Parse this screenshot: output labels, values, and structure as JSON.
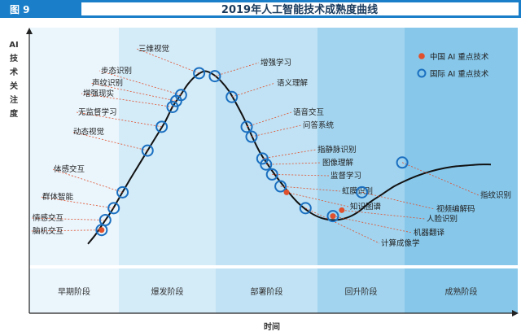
{
  "header": {
    "badge": "图 9",
    "title": "2019年人工智能技术成熟度曲线"
  },
  "axes": {
    "ylabel_chars": [
      "AI",
      "技",
      "术",
      "关",
      "注",
      "度"
    ],
    "xlabel": "时间"
  },
  "legend": [
    {
      "label": "中国 AI 重点技术",
      "marker": "dot",
      "color": "#e0502c"
    },
    {
      "label": "国际 AI 重点技术",
      "marker": "ring",
      "color": "#1a6fc0"
    }
  ],
  "colors": {
    "curve": "#111111",
    "cn": "#e0502c",
    "intl": "#1a6fc0",
    "stage_bg": [
      "#eaf5fc",
      "#d4ebf8",
      "#c0e2f4",
      "#a2d4ef",
      "#86c7ea"
    ]
  },
  "chart_data": {
    "type": "line",
    "title": "2019年人工智能技术成熟度曲线",
    "xlabel": "时间",
    "ylabel": "AI技术关注度",
    "stages": [
      "早期阶段",
      "爆发阶段",
      "部署阶段",
      "回升阶段",
      "成熟阶段"
    ],
    "curve": {
      "x": [
        0,
        2,
        4,
        6,
        8,
        10,
        13,
        16,
        19,
        21,
        23,
        25,
        27,
        29,
        31,
        33,
        35,
        37,
        39,
        41,
        43,
        46,
        49,
        52,
        55,
        58,
        61,
        64,
        67,
        70,
        73,
        76,
        79,
        82,
        85,
        88,
        91,
        94,
        97,
        100
      ],
      "y": [
        5,
        10,
        16,
        22,
        29,
        36,
        46,
        56,
        66,
        74,
        80,
        86,
        90,
        92,
        90.5,
        87,
        82,
        75,
        67,
        58,
        50,
        41,
        33,
        26,
        21,
        18,
        17,
        18,
        21,
        26,
        30,
        34,
        37,
        39.5,
        41.5,
        43,
        44,
        44.5,
        45,
        45
      ]
    },
    "technologies": [
      {
        "name": "脑机交互",
        "x": 3.4,
        "y": 12,
        "type": "both"
      },
      {
        "name": "情感交互",
        "x": 4.3,
        "y": 17,
        "type": "intl"
      },
      {
        "name": "群体智能",
        "x": 6.4,
        "y": 23,
        "type": "intl"
      },
      {
        "name": "体感交互",
        "x": 8.6,
        "y": 31,
        "type": "intl"
      },
      {
        "name": "动态视觉",
        "x": 14.8,
        "y": 52,
        "type": "intl"
      },
      {
        "name": "无监督学习",
        "x": 18.3,
        "y": 64,
        "type": "intl"
      },
      {
        "name": "增强现实",
        "x": 21.0,
        "y": 74,
        "type": "intl"
      },
      {
        "name": "声纹识别",
        "x": 21.9,
        "y": 77,
        "type": "intl"
      },
      {
        "name": "步态识别",
        "x": 23.1,
        "y": 80,
        "type": "intl"
      },
      {
        "name": "三维视觉",
        "x": 27.6,
        "y": 91,
        "type": "intl"
      },
      {
        "name": "增强学习",
        "x": 31.5,
        "y": 89.5,
        "type": "intl"
      },
      {
        "name": "语义理解",
        "x": 35.7,
        "y": 79,
        "type": "intl"
      },
      {
        "name": "语音交互",
        "x": 39.4,
        "y": 64,
        "type": "intl"
      },
      {
        "name": "问答系统",
        "x": 40.6,
        "y": 59,
        "type": "intl"
      },
      {
        "name": "指静脉识别",
        "x": 43.3,
        "y": 48,
        "type": "intl"
      },
      {
        "name": "图像理解",
        "x": 44.2,
        "y": 45,
        "type": "intl"
      },
      {
        "name": "监督学习",
        "x": 45.7,
        "y": 40,
        "type": "intl"
      },
      {
        "name": "虹膜识别",
        "x": 47.8,
        "y": 34,
        "type": "intl"
      },
      {
        "name": "知识图谱",
        "x": 49.3,
        "y": 31,
        "type": "cn"
      },
      {
        "name": "计算成像学",
        "x": 54.0,
        "y": 23,
        "type": "intl"
      },
      {
        "name": "机器翻译",
        "x": 60.8,
        "y": 19,
        "type": "both"
      },
      {
        "name": "人脸识别",
        "x": 63.0,
        "y": 22,
        "type": "cn"
      },
      {
        "name": "视频编解码",
        "x": 68.0,
        "y": 31,
        "type": "intl"
      },
      {
        "name": "指纹识别",
        "x": 78.0,
        "y": 46,
        "type": "intl"
      }
    ]
  }
}
